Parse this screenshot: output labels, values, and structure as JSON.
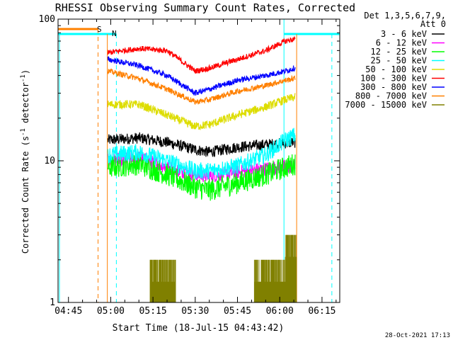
{
  "chart_data": {
    "type": "line",
    "title": "RHESSI Observing Summary Count Rates, Corrected",
    "xlabel": "Start Time (18-Jul-15 04:43:42)",
    "ylabel_main": "Corrected Count Rate (s",
    "ylabel_sup1": "-1",
    "ylabel_mid": " detector",
    "ylabel_sup2": "-1",
    "ylabel_end": ")",
    "y_scale": "log",
    "ylim": [
      1,
      100
    ],
    "xlim_minutes": [
      -3.7,
      21.3
    ],
    "x_ticks": [
      {
        "min": -15,
        "label": "04:45"
      },
      {
        "min": 0,
        "label": "05:00"
      },
      {
        "min": 15,
        "label": "05:15"
      },
      {
        "min": 30,
        "label": "05:30"
      },
      {
        "min": 45,
        "label": "05:45"
      },
      {
        "min": 60,
        "label": "06:00"
      },
      {
        "min": 75,
        "label": "06:15"
      }
    ],
    "y_ticks": [
      {
        "value": 1,
        "label": "1"
      },
      {
        "value": 10,
        "label": "10"
      },
      {
        "value": 100,
        "label": "100"
      }
    ],
    "legend_header": [
      "Det 1,3,5,6,7,9,",
      "Att 0"
    ],
    "legend_position": "right",
    "data_window_minutes": [
      -1,
      65.5
    ],
    "series": [
      {
        "name": "3 - 6 keV",
        "color": "#000000",
        "noise": 0.04,
        "points": [
          [
            -1,
            14
          ],
          [
            10,
            14.5
          ],
          [
            20,
            13.5
          ],
          [
            30,
            12
          ],
          [
            35,
            11.5
          ],
          [
            45,
            12.5
          ],
          [
            55,
            13
          ],
          [
            65,
            13.5
          ]
        ]
      },
      {
        "name": "6 - 12 keV",
        "color": "#ff00ff",
        "noise": 0.05,
        "points": [
          [
            -1,
            10
          ],
          [
            10,
            10.5
          ],
          [
            20,
            9
          ],
          [
            30,
            8
          ],
          [
            35,
            7.8
          ],
          [
            45,
            8.3
          ],
          [
            55,
            8.8
          ],
          [
            65,
            9.2
          ]
        ]
      },
      {
        "name": "12 - 25 keV",
        "color": "#00ff00",
        "noise": 0.08,
        "points": [
          [
            -1,
            9
          ],
          [
            10,
            9.5
          ],
          [
            20,
            8
          ],
          [
            30,
            6.5
          ],
          [
            35,
            6.2
          ],
          [
            45,
            7
          ],
          [
            55,
            8
          ],
          [
            62,
            9
          ],
          [
            65,
            9.5
          ]
        ]
      },
      {
        "name": "25 - 50 keV",
        "color": "#00ffff",
        "noise": 0.06,
        "points": [
          [
            -1,
            11
          ],
          [
            10,
            11.5
          ],
          [
            20,
            10
          ],
          [
            30,
            8.5
          ],
          [
            35,
            8.5
          ],
          [
            45,
            9.2
          ],
          [
            55,
            11
          ],
          [
            62,
            14
          ],
          [
            65,
            15
          ]
        ]
      },
      {
        "name": "50 - 100 keV",
        "color": "#dddd00",
        "noise": 0.03,
        "points": [
          [
            -1,
            25
          ],
          [
            10,
            25
          ],
          [
            20,
            21
          ],
          [
            30,
            17.5
          ],
          [
            35,
            18
          ],
          [
            45,
            21
          ],
          [
            55,
            24
          ],
          [
            62,
            27
          ],
          [
            65,
            28
          ]
        ]
      },
      {
        "name": "100 - 300 keV",
        "color": "#ff0000",
        "noise": 0.02,
        "points": [
          [
            -1,
            58
          ],
          [
            10,
            62
          ],
          [
            20,
            60
          ],
          [
            30,
            43
          ],
          [
            35,
            45
          ],
          [
            45,
            52
          ],
          [
            55,
            60
          ],
          [
            62,
            70
          ],
          [
            65,
            72
          ]
        ]
      },
      {
        "name": "300 - 800 keV",
        "color": "#0000ff",
        "noise": 0.02,
        "points": [
          [
            -1,
            52
          ],
          [
            10,
            47
          ],
          [
            20,
            40
          ],
          [
            30,
            30
          ],
          [
            35,
            32
          ],
          [
            45,
            37
          ],
          [
            55,
            40
          ],
          [
            62,
            43
          ],
          [
            65,
            45
          ]
        ]
      },
      {
        "name": "800 - 7000 keV",
        "color": "#ff8000",
        "noise": 0.02,
        "points": [
          [
            -1,
            43
          ],
          [
            10,
            38
          ],
          [
            20,
            32
          ],
          [
            30,
            26
          ],
          [
            35,
            27
          ],
          [
            45,
            31
          ],
          [
            55,
            34
          ],
          [
            62,
            37
          ],
          [
            65,
            38
          ]
        ]
      },
      {
        "name": "7000 - 15000 keV",
        "color": "#808000",
        "noise": 0,
        "points": []
      }
    ],
    "flags": [
      {
        "label": "S",
        "color": "#ff8000"
      },
      {
        "label": "N",
        "color": "#00ffff"
      }
    ],
    "timestamp": "28-Oct-2021 17:13"
  }
}
